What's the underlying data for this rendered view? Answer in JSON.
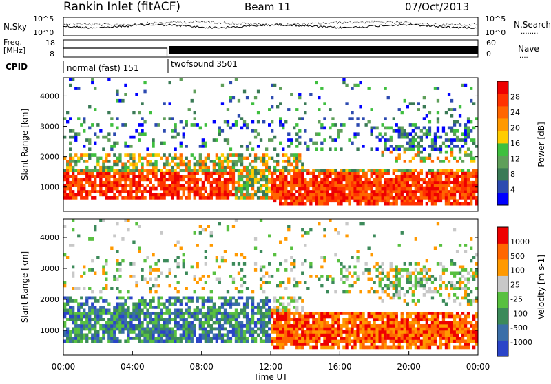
{
  "header": {
    "station": "Rankin Inlet (fitACF)",
    "beam": "Beam 11",
    "date": "07/Oct/2013"
  },
  "noise_panel": {
    "left_label": "N.Sky",
    "right_label": "N.Search",
    "right_label_dots": "........",
    "left_ticks": [
      "10^5",
      "10^0"
    ],
    "right_ticks": [
      "10^5",
      "10^0"
    ]
  },
  "freq_panel": {
    "left_label_1": "Freq.",
    "left_label_2": "[MHz]",
    "right_label": "Nave",
    "right_label_dots": "....",
    "left_ticks": [
      "18",
      "8"
    ],
    "right_ticks": [
      "60",
      "0"
    ]
  },
  "cpid": {
    "label": "CPID",
    "segments": [
      {
        "name": "normal (fast) 151",
        "start_hour": 0,
        "end_hour": 6
      },
      {
        "name": "twofsound 3501",
        "start_hour": 6,
        "end_hour": 24
      }
    ]
  },
  "chart_data": [
    {
      "type": "heatmap",
      "ylabel": "Slant Range [km]",
      "y_ticks": [
        1000,
        2000,
        3000,
        4000
      ],
      "ylim": [
        200,
        4600
      ],
      "xlim_hours": [
        0,
        24
      ],
      "colorbar": {
        "label": "Power [dB]",
        "tick_labels": [
          "28",
          "24",
          "20",
          "16",
          "12",
          "8",
          "4"
        ],
        "colors": [
          "#0000ff",
          "#2c4ab0",
          "#3a7a56",
          "#5f9f5a",
          "#3fbf3f",
          "#ffcc00",
          "#ff9900",
          "#ff6600",
          "#ff3300",
          "#ee0000"
        ]
      }
    },
    {
      "type": "heatmap",
      "ylabel": "Slant Range [km]",
      "y_ticks": [
        1000,
        2000,
        3000,
        4000
      ],
      "ylim": [
        200,
        4600
      ],
      "xlim_hours": [
        0,
        24
      ],
      "colorbar": {
        "label": "Velocity [m s-1]",
        "tick_labels": [
          "1000",
          "500",
          "100",
          "25",
          "-25",
          "-100",
          "-500",
          "-1000"
        ],
        "colors": [
          "#2a44c8",
          "#3b6fa8",
          "#3c8a5a",
          "#58c040",
          "#c8c8c8",
          "#ff9900",
          "#ff6600",
          "#ee0000"
        ]
      }
    }
  ],
  "x_axis": {
    "label": "Time UT",
    "ticks": [
      "00:00",
      "04:00",
      "08:00",
      "12:00",
      "16:00",
      "20:00",
      "00:00"
    ]
  }
}
